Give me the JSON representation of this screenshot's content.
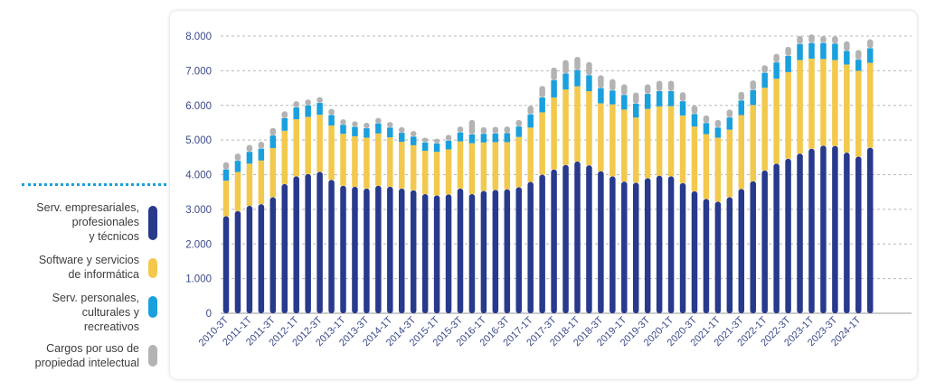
{
  "legend": {
    "items": [
      {
        "label": "Serv. empresariales,\nprofesionales\ny técnicos",
        "color": "#283a8c"
      },
      {
        "label": "Software y servicios\nde informática",
        "color": "#f2c94c"
      },
      {
        "label": "Serv. personales,\nculturales y\nrecreativos",
        "color": "#1aa0dd"
      },
      {
        "label": "Cargos por uso de\npropiedad intelectual",
        "color": "#b3b3b3"
      }
    ]
  },
  "chart_data": {
    "type": "bar",
    "stacked": true,
    "ylim": [
      0,
      8000
    ],
    "yticks": [
      0,
      1000,
      2000,
      3000,
      4000,
      5000,
      6000,
      7000,
      8000
    ],
    "ytick_labels": [
      "0",
      "1.000",
      "2.000",
      "3.000",
      "4.000",
      "5.000",
      "6.000",
      "7.000",
      "8.000"
    ],
    "grid": true,
    "categories": [
      "2010-3T",
      "2010-4T",
      "2011-1T",
      "2011-2T",
      "2011-3T",
      "2011-4T",
      "2012-1T",
      "2012-2T",
      "2012-3T",
      "2012-4T",
      "2013-1T",
      "2013-2T",
      "2013-3T",
      "2013-4T",
      "2014-1T",
      "2014-2T",
      "2014-3T",
      "2014-4T",
      "2015-1T",
      "2015-2T",
      "2015-3T",
      "2015-4T",
      "2016-1T",
      "2016-2T",
      "2016-3T",
      "2016-4T",
      "2017-1T",
      "2017-2T",
      "2017-3T",
      "2017-4T",
      "2018-1T",
      "2018-2T",
      "2018-3T",
      "2018-4T",
      "2019-1T",
      "2019-2T",
      "2019-3T",
      "2019-4T",
      "2020-1T",
      "2020-2T",
      "2020-3T",
      "2020-4T",
      "2021-1T",
      "2021-2T",
      "2021-3T",
      "2021-4T",
      "2022-1T",
      "2022-2T",
      "2022-3T",
      "2022-4T",
      "2023-1T",
      "2023-2T",
      "2023-3T",
      "2023-4T",
      "2024-1T",
      "2024-2T"
    ],
    "xtick_labels": [
      "2010-3T",
      "2011-1T",
      "2011-3T",
      "2012-1T",
      "2012-3T",
      "2013-1T",
      "2013-3T",
      "2014-1T",
      "2014-3T",
      "2015-1T",
      "2015-3T",
      "2016-1T",
      "2016-3T",
      "2017-1T",
      "2017-3T",
      "2018-1T",
      "2018-3T",
      "2019-1T",
      "2019-3T",
      "2020-1T",
      "2020-3T",
      "2021-1T",
      "2021-3T",
      "2022-1T",
      "2022-3T",
      "2023-1T",
      "2023-3T",
      "2024-1T"
    ],
    "series": [
      {
        "name": "Serv. empresariales, profesionales y técnicos",
        "color": "#283a8c",
        "values": [
          2800,
          2950,
          3100,
          3150,
          3350,
          3730,
          3950,
          4020,
          4080,
          3850,
          3680,
          3650,
          3600,
          3680,
          3650,
          3600,
          3550,
          3440,
          3400,
          3430,
          3600,
          3440,
          3530,
          3560,
          3580,
          3640,
          3790,
          4000,
          4150,
          4280,
          4380,
          4270,
          4100,
          3950,
          3800,
          3770,
          3900,
          3970,
          3950,
          3760,
          3520,
          3300,
          3220,
          3350,
          3590,
          3810,
          4120,
          4320,
          4460,
          4610,
          4750,
          4840,
          4830,
          4640,
          4520,
          4780
        ]
      },
      {
        "name": "Software y servicios de informática",
        "color": "#f2c94c",
        "values": [
          1030,
          1130,
          1220,
          1260,
          1420,
          1540,
          1650,
          1650,
          1650,
          1570,
          1500,
          1460,
          1470,
          1510,
          1430,
          1350,
          1300,
          1250,
          1260,
          1300,
          1360,
          1470,
          1400,
          1380,
          1360,
          1450,
          1570,
          1800,
          2080,
          2180,
          2170,
          2140,
          1960,
          2080,
          2080,
          1880,
          2000,
          2000,
          2030,
          1950,
          1870,
          1870,
          1850,
          1950,
          2130,
          2200,
          2390,
          2450,
          2500,
          2700,
          2600,
          2500,
          2480,
          2540,
          2480,
          2450
        ]
      },
      {
        "name": "Serv. personales, culturales y recreativos",
        "color": "#1aa0dd",
        "values": [
          320,
          320,
          340,
          340,
          360,
          360,
          340,
          330,
          340,
          300,
          260,
          270,
          270,
          290,
          280,
          260,
          250,
          240,
          240,
          250,
          260,
          250,
          250,
          250,
          260,
          300,
          380,
          430,
          500,
          460,
          470,
          460,
          440,
          400,
          420,
          400,
          430,
          440,
          430,
          410,
          360,
          320,
          290,
          350,
          420,
          430,
          430,
          470,
          470,
          460,
          450,
          460,
          470,
          390,
          320,
          420
        ]
      },
      {
        "name": "Cargos por uso de propiedad intelectual",
        "color": "#b3b3b3",
        "values": [
          210,
          210,
          200,
          200,
          220,
          200,
          180,
          170,
          170,
          180,
          160,
          160,
          160,
          160,
          160,
          160,
          160,
          140,
          140,
          170,
          170,
          420,
          190,
          190,
          190,
          190,
          250,
          330,
          360,
          390,
          380,
          380,
          370,
          330,
          310,
          320,
          280,
          300,
          300,
          260,
          250,
          220,
          220,
          230,
          250,
          280,
          220,
          250,
          260,
          230,
          250,
          200,
          220,
          280,
          280,
          260
        ]
      }
    ]
  }
}
